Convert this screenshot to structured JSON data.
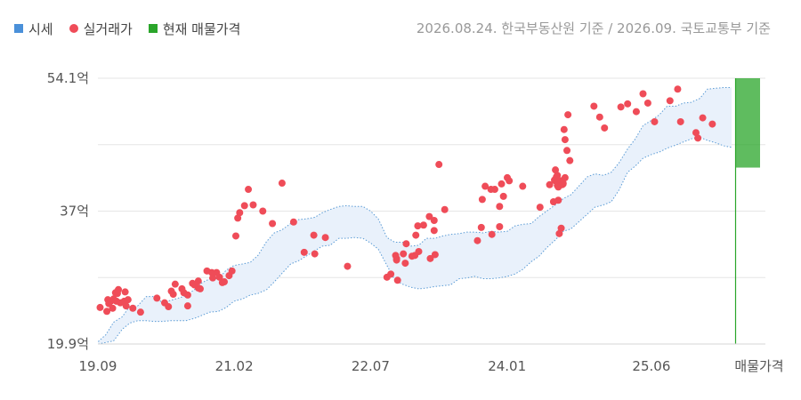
{
  "legend": [
    {
      "label": "시세",
      "color": "#4a90d9",
      "shape": "square"
    },
    {
      "label": "실거래가",
      "color": "#ef4c58",
      "shape": "circle"
    },
    {
      "label": "현재 매물가격",
      "color": "#2aa52a",
      "shape": "square"
    }
  ],
  "source_text": "2026.08.24. 한국부동산원 기준 / 2026.09. 국토교통부 기준",
  "chart_data": {
    "type": "scatter",
    "xlim": [
      2019.667,
      2026.25
    ],
    "ylim": [
      19.9,
      54.1
    ],
    "y_ticks": [
      19.9,
      37,
      54.1
    ],
    "y_tick_labels": [
      "19.9억",
      "37억",
      "54.1억"
    ],
    "x_ticks": [
      2019.667,
      2021.083,
      2022.5,
      2023.917,
      2025.417
    ],
    "x_tick_labels": [
      "19.09",
      "21.02",
      "22.07",
      "24.01",
      "25.06"
    ],
    "listing_label": "매물가격",
    "colors": {
      "band_fill": "#e9f1fb",
      "band_line": "#5a9bd5",
      "dot": "#ef4c58",
      "listing": "#2aa52a",
      "grid": "#e6e6e6"
    },
    "series": [
      {
        "name": "실거래가",
        "x": [
          2019.69,
          2019.76,
          2019.77,
          2019.78,
          2019.8,
          2019.82,
          2019.83,
          2019.85,
          2019.86,
          2019.87,
          2019.88,
          2019.9,
          2019.94,
          2019.95,
          2019.96,
          2019.98,
          2020.03,
          2020.11,
          2020.28,
          2020.36,
          2020.4,
          2020.43,
          2020.45,
          2020.47,
          2020.54,
          2020.56,
          2020.6,
          2020.6,
          2020.65,
          2020.67,
          2020.71,
          2020.71,
          2020.73,
          2020.8,
          2020.85,
          2020.86,
          2020.9,
          2020.93,
          2020.96,
          2020.98,
          2021.03,
          2021.06,
          2021.1,
          2021.12,
          2021.14,
          2021.19,
          2021.23,
          2021.28,
          2021.38,
          2021.48,
          2021.58,
          2021.7,
          2021.81,
          2021.91,
          2021.92,
          2022.03,
          2022.26,
          2022.67,
          2022.71,
          2022.76,
          2022.77,
          2022.77,
          2022.78,
          2022.84,
          2022.86,
          2022.87,
          2022.93,
          2022.96,
          2022.97,
          2022.99,
          2023.0,
          2023.05,
          2023.11,
          2023.12,
          2023.16,
          2023.16,
          2023.17,
          2023.21,
          2023.27,
          2023.61,
          2023.65,
          2023.66,
          2023.69,
          2023.75,
          2023.76,
          2023.79,
          2023.84,
          2023.84,
          2023.86,
          2023.88,
          2023.92,
          2023.94,
          2024.08,
          2024.26,
          2024.36,
          2024.4,
          2024.41,
          2024.42,
          2024.42,
          2024.43,
          2024.44,
          2024.44,
          2024.45,
          2024.45,
          2024.46,
          2024.48,
          2024.48,
          2024.49,
          2024.5,
          2024.5,
          2024.51,
          2024.52,
          2024.52,
          2024.54,
          2024.55,
          2024.57,
          2024.82,
          2024.88,
          2024.93,
          2025.1,
          2025.17,
          2025.26,
          2025.33,
          2025.38,
          2025.45,
          2025.61,
          2025.69,
          2025.72,
          2025.88,
          2025.9,
          2025.95,
          2026.05
        ],
        "y": [
          24.6,
          24.1,
          25.6,
          25.1,
          25.4,
          24.5,
          25.7,
          26.5,
          25.4,
          26.4,
          26.9,
          25.2,
          25.4,
          26.6,
          24.8,
          25.6,
          24.5,
          24.0,
          25.8,
          25.2,
          24.7,
          26.7,
          26.3,
          27.6,
          27.0,
          26.5,
          24.8,
          26.2,
          27.7,
          27.5,
          28.0,
          27.1,
          27.0,
          29.3,
          29.1,
          28.4,
          29.1,
          28.5,
          27.8,
          27.9,
          28.7,
          29.3,
          33.8,
          36.1,
          36.8,
          37.7,
          39.8,
          37.8,
          37.0,
          35.4,
          40.6,
          35.6,
          31.7,
          33.9,
          31.5,
          33.6,
          29.9,
          28.5,
          28.9,
          31.3,
          30.9,
          30.7,
          28.1,
          31.5,
          30.3,
          32.8,
          31.2,
          31.3,
          33.9,
          35.1,
          31.8,
          35.2,
          36.3,
          30.9,
          35.8,
          34.5,
          31.4,
          43.0,
          37.2,
          33.2,
          34.9,
          38.5,
          40.2,
          39.8,
          34.0,
          39.8,
          35.0,
          37.6,
          40.5,
          38.9,
          41.3,
          40.9,
          40.2,
          37.5,
          40.4,
          38.2,
          41.0,
          40.9,
          42.3,
          41.4,
          40.3,
          41.6,
          40.1,
          38.4,
          34.1,
          40.9,
          34.8,
          40.4,
          40.6,
          40.5,
          47.5,
          41.3,
          46.2,
          44.8,
          49.4,
          43.5,
          50.5,
          49.1,
          47.7,
          50.4,
          50.8,
          49.8,
          52.1,
          50.9,
          48.5,
          51.2,
          52.7,
          48.5,
          47.1,
          46.4,
          49.0,
          48.2
        ]
      }
    ],
    "band": {
      "name": "시세",
      "x": [
        2019.67,
        2019.75,
        2019.83,
        2019.92,
        2020.0,
        2020.08,
        2020.17,
        2020.25,
        2020.33,
        2020.42,
        2020.5,
        2020.58,
        2020.67,
        2020.75,
        2020.83,
        2020.92,
        2021.0,
        2021.08,
        2021.17,
        2021.25,
        2021.33,
        2021.42,
        2021.5,
        2021.58,
        2021.67,
        2021.75,
        2021.83,
        2021.92,
        2022.0,
        2022.08,
        2022.17,
        2022.25,
        2022.33,
        2022.42,
        2022.5,
        2022.58,
        2022.67,
        2022.75,
        2022.83,
        2022.92,
        2023.0,
        2023.08,
        2023.17,
        2023.25,
        2023.33,
        2023.42,
        2023.5,
        2023.58,
        2023.67,
        2023.75,
        2023.83,
        2023.92,
        2024.0,
        2024.08,
        2024.17,
        2024.25,
        2024.33,
        2024.42,
        2024.5,
        2024.58,
        2024.67,
        2024.75,
        2024.83,
        2024.92,
        2025.0,
        2025.08,
        2025.17,
        2025.25,
        2025.33,
        2025.42,
        2025.5,
        2025.58,
        2025.67,
        2025.75,
        2025.83,
        2025.92,
        2026.0,
        2026.08,
        2026.17,
        2026.25
      ],
      "upper": [
        20.2,
        21.1,
        22.7,
        23.4,
        24.8,
        24.8,
        26.0,
        26.0,
        25.3,
        25.5,
        25.8,
        26.1,
        26.9,
        27.8,
        28.3,
        28.3,
        29.4,
        30.0,
        30.2,
        30.4,
        31.3,
        33.1,
        34.2,
        34.6,
        35.4,
        35.9,
        36.0,
        36.2,
        36.8,
        37.2,
        37.6,
        37.7,
        37.6,
        37.6,
        37.0,
        36.0,
        33.6,
        33.0,
        33.0,
        32.5,
        32.6,
        33.5,
        33.5,
        33.8,
        34.0,
        34.1,
        34.3,
        34.3,
        34.2,
        34.4,
        34.3,
        34.4,
        35.1,
        35.3,
        35.4,
        36.3,
        37.0,
        37.8,
        38.6,
        39.1,
        40.3,
        41.4,
        41.8,
        41.6,
        42.0,
        43.2,
        45.0,
        46.3,
        48.0,
        48.7,
        49.4,
        50.5,
        50.5,
        50.9,
        51.0,
        51.5,
        52.7,
        52.8,
        52.9,
        52.9
      ],
      "lower": [
        19.9,
        20.1,
        20.3,
        21.8,
        22.6,
        22.9,
        22.9,
        22.8,
        22.8,
        22.9,
        22.9,
        22.9,
        23.2,
        23.6,
        24.0,
        24.1,
        24.6,
        25.4,
        25.7,
        26.2,
        26.4,
        26.9,
        27.9,
        29.0,
        30.2,
        30.6,
        31.2,
        31.9,
        32.5,
        32.6,
        33.5,
        33.5,
        33.6,
        33.5,
        32.9,
        32.1,
        30.0,
        28.2,
        27.6,
        27.2,
        27.0,
        27.1,
        27.3,
        27.4,
        27.5,
        28.3,
        28.4,
        28.6,
        28.3,
        28.3,
        28.4,
        28.6,
        28.9,
        29.5,
        30.5,
        31.2,
        32.3,
        33.3,
        34.4,
        34.7,
        35.7,
        36.6,
        37.5,
        37.8,
        38.2,
        39.7,
        42.0,
        42.8,
        43.8,
        44.3,
        44.6,
        45.1,
        45.5,
        45.9,
        46.3,
        46.5,
        46.1,
        45.8,
        45.4,
        45.2
      ]
    },
    "listing_range": [
      42.6,
      54.1
    ]
  }
}
